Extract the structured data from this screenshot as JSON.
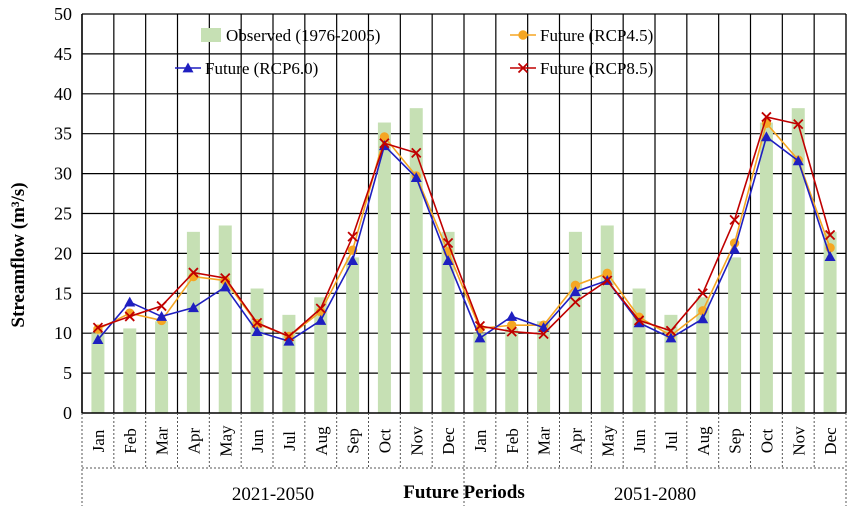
{
  "chart_data": {
    "type": "bar+line",
    "ylabel": "Streamflow (m³/s)",
    "xlabel": "Future Periods",
    "ylim": [
      0,
      50
    ],
    "yticks": [
      0,
      5,
      10,
      15,
      20,
      25,
      30,
      35,
      40,
      45,
      50
    ],
    "grid": true,
    "legend_position": "top",
    "periods": [
      "2021-2050",
      "2051-2080"
    ],
    "months": [
      "Jan",
      "Feb",
      "Mar",
      "Apr",
      "May",
      "Jun",
      "Jul",
      "Aug",
      "Sep",
      "Oct",
      "Nov",
      "Dec"
    ],
    "observed": {
      "name": "Observed (1976-2005)",
      "color": "#c6e0b4",
      "values": [
        10.0,
        10.6,
        11.5,
        22.7,
        23.5,
        15.6,
        12.3,
        14.5,
        19.5,
        36.4,
        38.2,
        22.7
      ]
    },
    "series": [
      {
        "name": "Future (RCP4.5)",
        "color": "#f5a623",
        "marker": "circle",
        "values_2021_2050": [
          10.5,
          12.5,
          11.6,
          17.1,
          16.6,
          11.2,
          9.6,
          12.7,
          20.4,
          34.6,
          29.7,
          20.2
        ],
        "values_2051_2080": [
          10.6,
          11.0,
          11.0,
          16.0,
          17.5,
          12.0,
          9.7,
          12.8,
          21.3,
          36.3,
          31.7,
          20.7
        ]
      },
      {
        "name": "Future (RCP6.0)",
        "color": "#1f1fc0",
        "marker": "triangle",
        "values_2021_2050": [
          9.2,
          13.9,
          12.1,
          13.2,
          15.8,
          10.2,
          9.0,
          11.6,
          19.1,
          33.5,
          29.5,
          19.1
        ],
        "values_2051_2080": [
          9.4,
          12.1,
          10.7,
          15.2,
          16.6,
          11.3,
          9.4,
          11.8,
          20.5,
          34.6,
          31.6,
          19.6
        ]
      },
      {
        "name": "Future (RCP8.5)",
        "color": "#c00000",
        "marker": "x",
        "values_2021_2050": [
          10.7,
          12.1,
          13.4,
          17.6,
          16.9,
          11.3,
          9.6,
          13.1,
          22.1,
          33.8,
          32.6,
          21.3
        ],
        "values_2051_2080": [
          10.9,
          10.2,
          9.9,
          13.9,
          16.6,
          11.6,
          10.3,
          15.0,
          24.2,
          37.1,
          36.2,
          22.3
        ]
      }
    ]
  }
}
